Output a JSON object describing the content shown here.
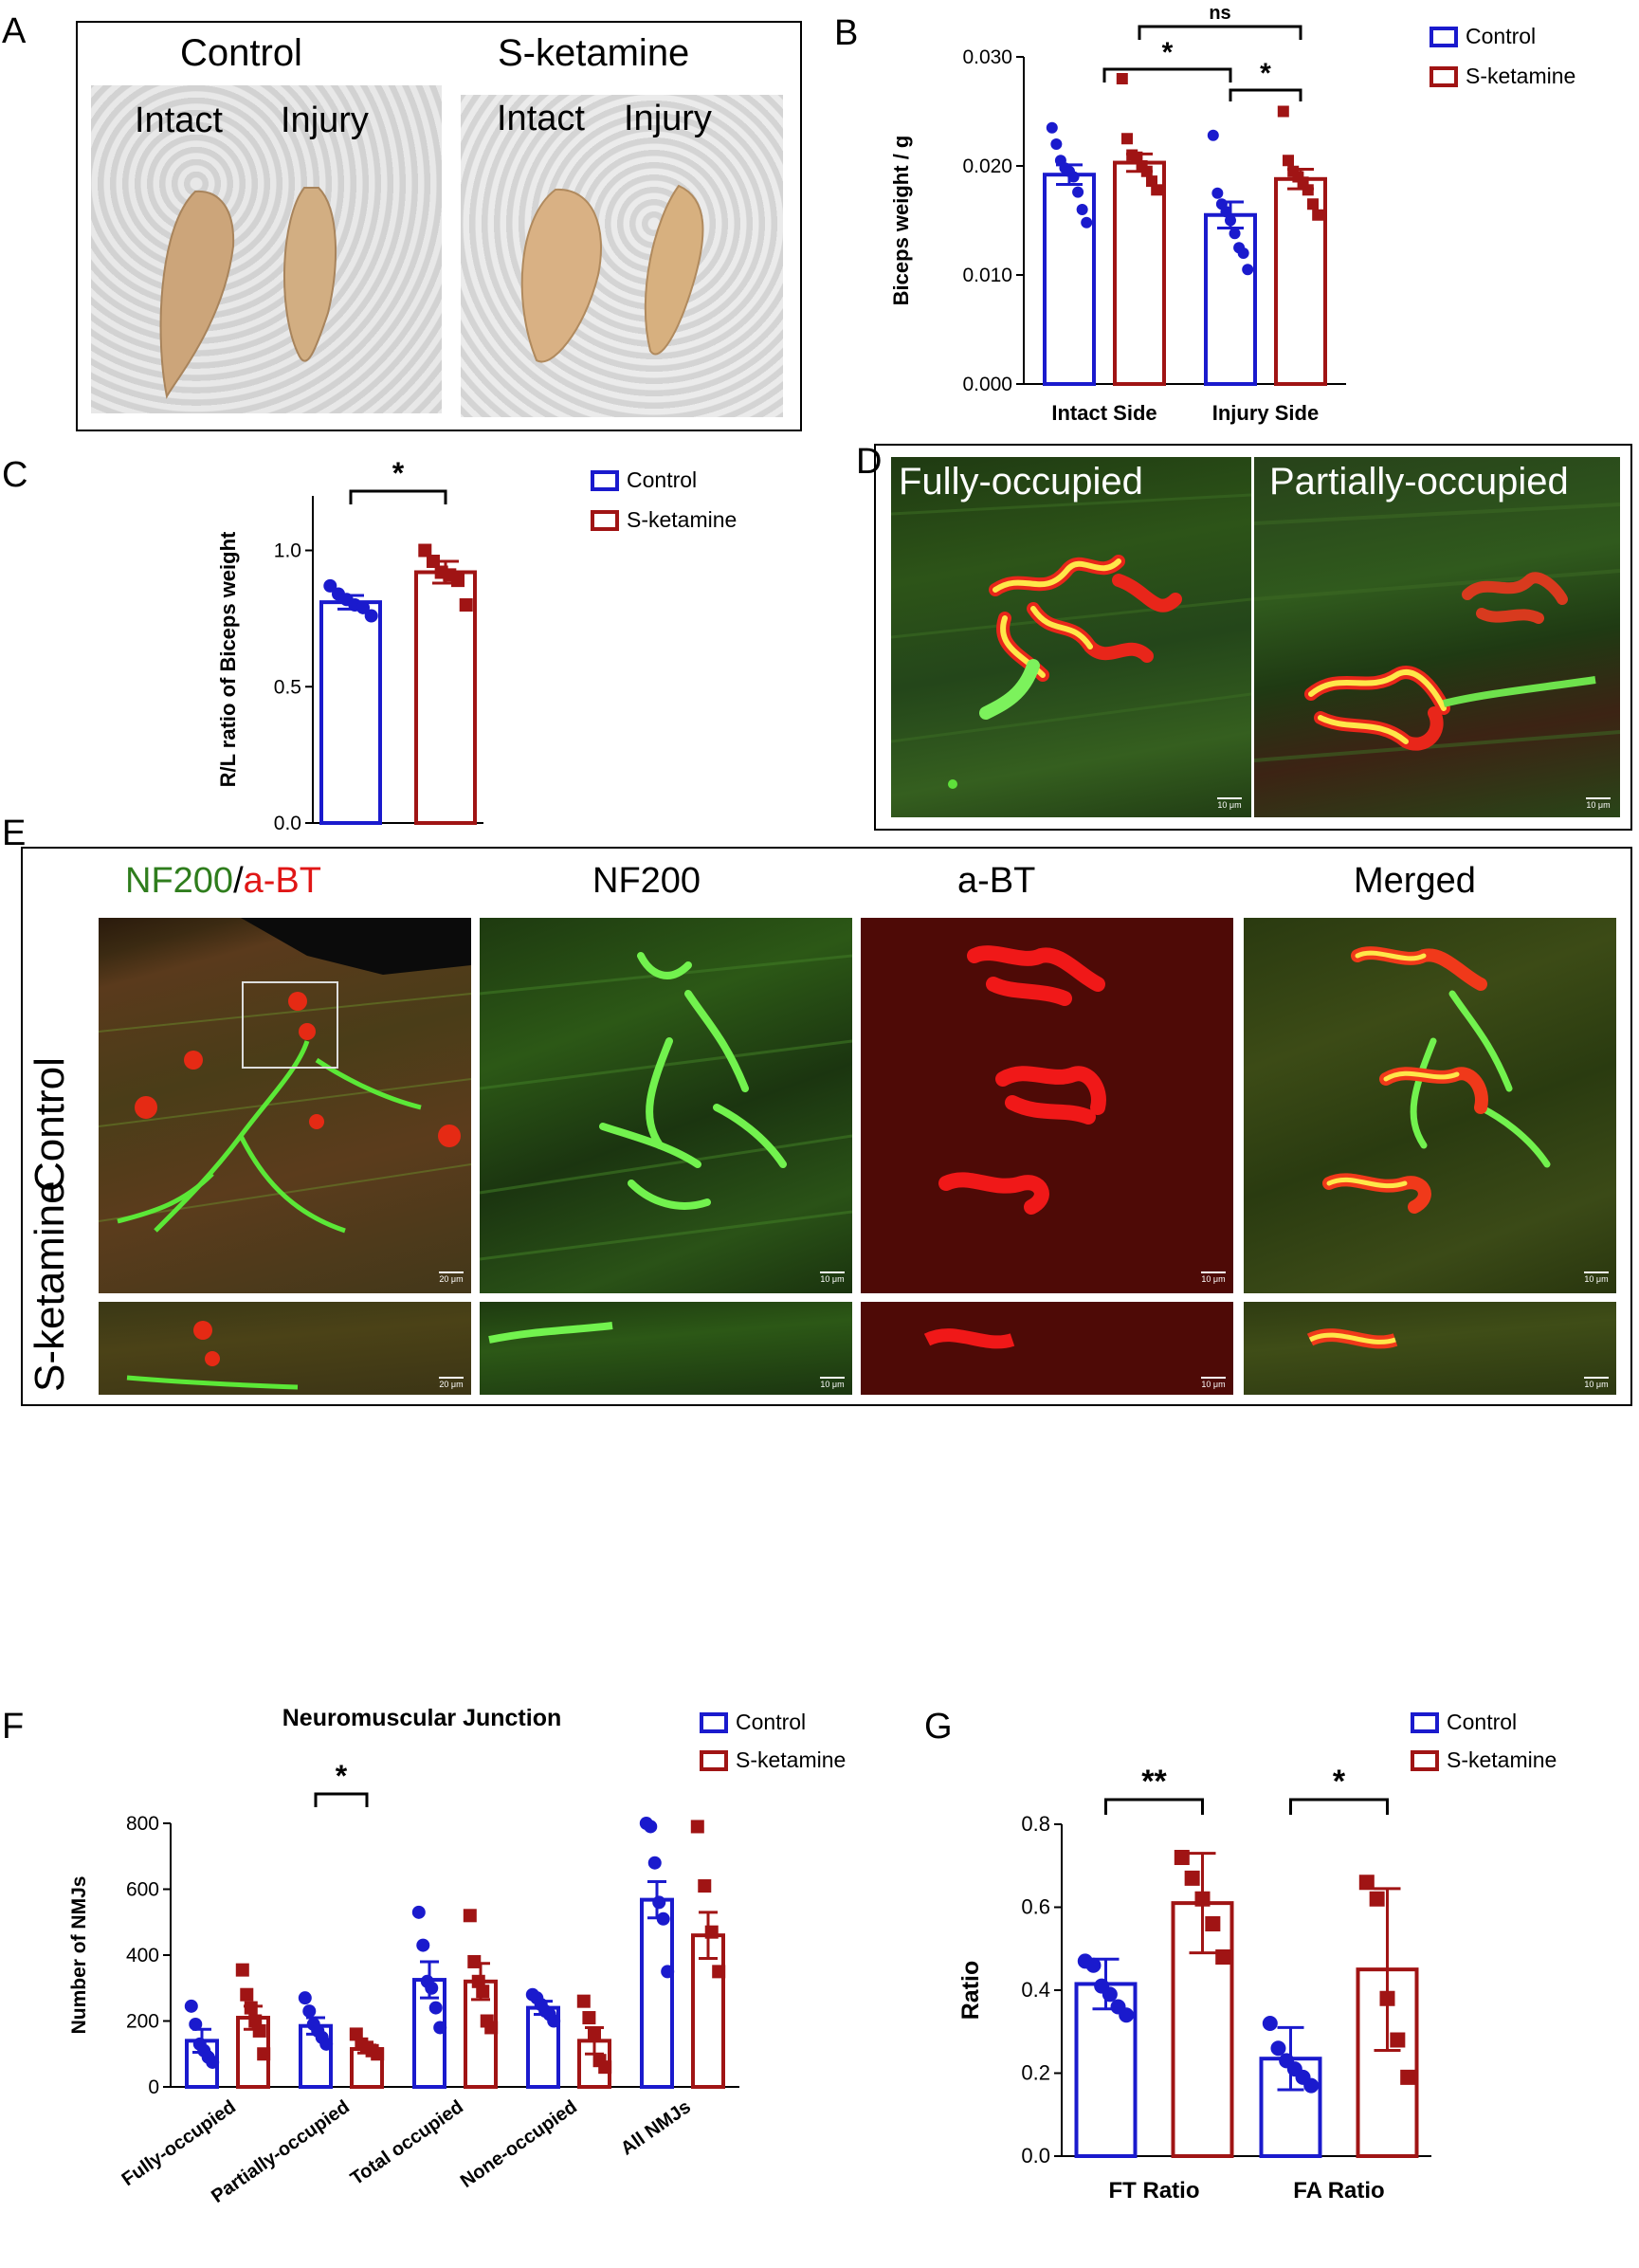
{
  "panels": {
    "A": {
      "label": "A",
      "groups": [
        {
          "title": "Control",
          "left": "Intact",
          "right": "Injury"
        },
        {
          "title": "S-ketamine",
          "left": "Intact",
          "right": "Injury"
        }
      ]
    },
    "B": {
      "label": "B"
    },
    "C": {
      "label": "C"
    },
    "D": {
      "label": "D",
      "images": [
        "Fully-occupied",
        "Partially-occupied"
      ],
      "scale": "10 μm"
    },
    "E": {
      "label": "E",
      "col_headers": {
        "nf200": "NF200",
        "slash": "/",
        "abt": "a-BT",
        "nf200_only": "NF200",
        "abt_only": "a-BT",
        "merged": "Merged"
      },
      "row_headers": [
        "Control",
        "S-ketamine"
      ],
      "scale_20": "20 μm",
      "scale_10": "10 μm"
    },
    "F": {
      "label": "F"
    },
    "G": {
      "label": "G"
    }
  },
  "colors": {
    "control": "#1a1acd",
    "sketamine": "#a01414",
    "green": "#39d62b",
    "red": "#e81010"
  },
  "chart_data": [
    {
      "id": "B",
      "type": "bar",
      "title": "",
      "xlabel": "",
      "ylabel": "Biceps weight / g",
      "categories": [
        "Intact Side",
        "Injury Side"
      ],
      "ylim": [
        0,
        0.03
      ],
      "yticks": [
        "0.000",
        "0.010",
        "0.020",
        "0.030"
      ],
      "series": [
        {
          "name": "Control",
          "values": [
            0.0192,
            0.0155
          ],
          "sem": [
            0.0009,
            0.0012
          ],
          "points": [
            [
              0.0235,
              0.022,
              0.0205,
              0.0198,
              0.0195,
              0.019,
              0.0176,
              0.016,
              0.0148
            ],
            [
              0.0228,
              0.0175,
              0.0165,
              0.0158,
              0.015,
              0.0138,
              0.0125,
              0.012,
              0.0105
            ]
          ]
        },
        {
          "name": "S-ketamine",
          "values": [
            0.0203,
            0.0188
          ],
          "sem": [
            0.0008,
            0.0009
          ],
          "points": [
            [
              0.028,
              0.0225,
              0.021,
              0.0208,
              0.02,
              0.0195,
              0.0186,
              0.0178
            ],
            [
              0.025,
              0.0205,
              0.0195,
              0.019,
              0.0185,
              0.0178,
              0.0165,
              0.0155
            ]
          ]
        }
      ],
      "legend": "top-right",
      "annotations": [
        {
          "text": "*",
          "from": [
            0,
            0
          ],
          "to": [
            1,
            0
          ]
        },
        {
          "text": "*",
          "from": [
            1,
            0
          ],
          "to": [
            1,
            1
          ]
        },
        {
          "text": "ns",
          "from": [
            0,
            1
          ],
          "to": [
            1,
            1
          ]
        }
      ]
    },
    {
      "id": "C",
      "type": "bar",
      "title": "",
      "xlabel": "",
      "ylabel": "R/L ratio of Biceps weight",
      "categories": [
        ""
      ],
      "ylim": [
        0,
        1.2
      ],
      "yticks": [
        "0.0",
        "0.5",
        "1.0"
      ],
      "series": [
        {
          "name": "Control",
          "values": [
            0.81
          ],
          "sem": [
            0.025
          ],
          "points": [
            [
              0.87,
              0.84,
              0.82,
              0.8,
              0.79,
              0.76
            ]
          ]
        },
        {
          "name": "S-ketamine",
          "values": [
            0.92
          ],
          "sem": [
            0.04
          ],
          "points": [
            [
              1.0,
              0.96,
              0.92,
              0.91,
              0.89,
              0.8
            ]
          ]
        }
      ],
      "legend": "top-right",
      "annotations": [
        {
          "text": "*"
        }
      ]
    },
    {
      "id": "F",
      "type": "bar",
      "title": "Neuromuscular Junction",
      "xlabel": "",
      "ylabel": "Number of NMJs",
      "categories": [
        "Fully-occupied",
        "Partially-occupied",
        "Total occupied",
        "None-occupied",
        "All NMJs"
      ],
      "ylim": [
        0,
        800
      ],
      "yticks": [
        "0",
        "200",
        "400",
        "600",
        "800"
      ],
      "series": [
        {
          "name": "Control",
          "values": [
            140,
            185,
            325,
            240,
            568
          ],
          "sem": [
            35,
            25,
            55,
            20,
            55
          ],
          "points": [
            [
              245,
              190,
              130,
              110,
              90,
              75
            ],
            [
              270,
              230,
              190,
              170,
              150,
              130
            ],
            [
              530,
              430,
              320,
              300,
              240,
              180
            ],
            [
              280,
              270,
              250,
              230,
              220,
              200
            ],
            [
              800,
              790,
              680,
              560,
              510,
              350
            ]
          ]
        },
        {
          "name": "S-ketamine",
          "values": [
            210,
            115,
            320,
            140,
            460
          ],
          "sem": [
            35,
            12,
            55,
            40,
            70
          ],
          "points": [
            [
              355,
              280,
              240,
              200,
              170,
              100
            ],
            [
              160,
              130,
              120,
              110,
              100
            ],
            [
              520,
              380,
              320,
              290,
              200,
              180
            ],
            [
              260,
              210,
              160,
              80,
              60
            ],
            [
              790,
              610,
              470,
              350
            ]
          ]
        }
      ],
      "legend": "top-right",
      "annotations": [
        {
          "text": "*",
          "category": 1
        }
      ]
    },
    {
      "id": "G",
      "type": "bar",
      "title": "",
      "xlabel": "",
      "ylabel": "Ratio",
      "categories": [
        "FT Ratio",
        "FA Ratio"
      ],
      "ylim": [
        0,
        0.8
      ],
      "yticks": [
        "0.0",
        "0.2",
        "0.4",
        "0.6",
        "0.8"
      ],
      "series": [
        {
          "name": "Control",
          "values": [
            0.415,
            0.235
          ],
          "sd": [
            0.06,
            0.075
          ],
          "points": [
            [
              0.47,
              0.46,
              0.41,
              0.39,
              0.36,
              0.34
            ],
            [
              0.32,
              0.26,
              0.23,
              0.21,
              0.19,
              0.17
            ]
          ]
        },
        {
          "name": "S-ketamine",
          "values": [
            0.61,
            0.45
          ],
          "sd": [
            0.12,
            0.195
          ],
          "points": [
            [
              0.72,
              0.67,
              0.62,
              0.56,
              0.48
            ],
            [
              0.66,
              0.62,
              0.38,
              0.28,
              0.19
            ]
          ]
        }
      ],
      "legend": "top-right",
      "annotations": [
        {
          "text": "**",
          "category": 0
        },
        {
          "text": "*",
          "category": 1
        }
      ]
    }
  ]
}
